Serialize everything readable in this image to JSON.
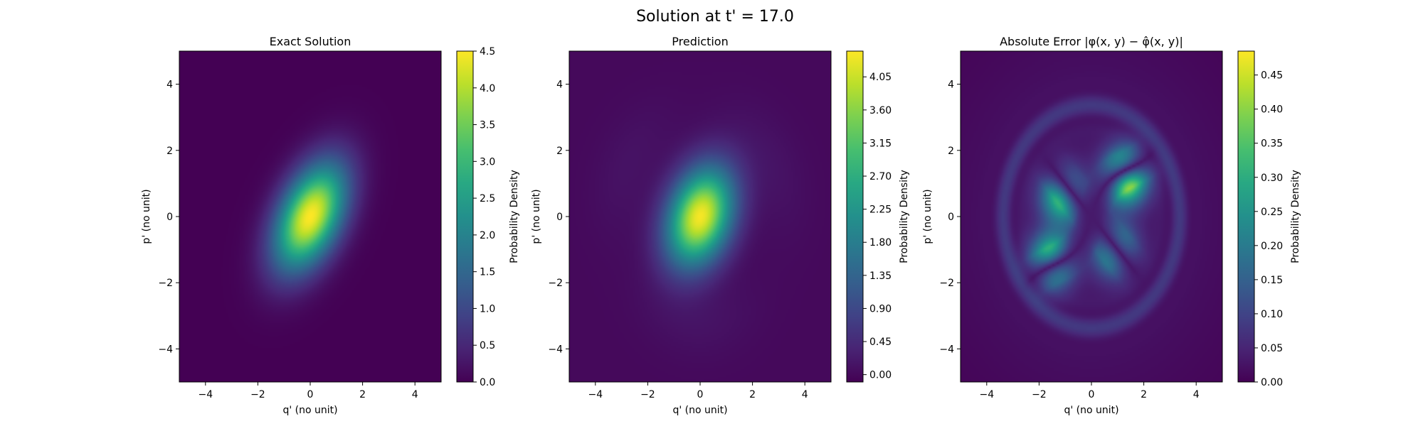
{
  "figure": {
    "suptitle": "Solution at t' = 17.0"
  },
  "chart_data": [
    {
      "type": "heatmap",
      "title": "Exact Solution",
      "xlabel": "q' (no unit)",
      "ylabel": "p' (no unit)",
      "xlim": [
        -5,
        5
      ],
      "ylim": [
        -5,
        5
      ],
      "xticks": [
        -4,
        -2,
        0,
        2,
        4
      ],
      "yticks": [
        -4,
        -2,
        0,
        2,
        4
      ],
      "xtick_labels": [
        "−4",
        "−2",
        "0",
        "2",
        "4"
      ],
      "ytick_labels": [
        "−4",
        "−2",
        "0",
        "2",
        "4"
      ],
      "colormap": "viridis",
      "colorbar": {
        "label": "Probability Density",
        "range": [
          0,
          4.5
        ],
        "ticks": [
          0,
          0.5,
          1.0,
          1.5,
          2.0,
          2.5,
          3.0,
          3.5,
          4.0,
          4.5
        ],
        "tick_labels": [
          "0.0",
          "0.5",
          "1.0",
          "1.5",
          "2.0",
          "2.5",
          "3.0",
          "3.5",
          "4.0",
          "4.5"
        ]
      },
      "field": {
        "kind": "gaussian",
        "peak": 4.5,
        "center": [
          0,
          0
        ],
        "sigma_major": 1.25,
        "sigma_minor": 0.75,
        "major_axis_angle_deg": 55
      }
    },
    {
      "type": "heatmap",
      "title": "Prediction",
      "xlabel": "q' (no unit)",
      "ylabel": "p' (no unit)",
      "xlim": [
        -5,
        5
      ],
      "ylim": [
        -5,
        5
      ],
      "xticks": [
        -4,
        -2,
        0,
        2,
        4
      ],
      "yticks": [
        -4,
        -2,
        0,
        2,
        4
      ],
      "xtick_labels": [
        "−4",
        "−2",
        "0",
        "2",
        "4"
      ],
      "ytick_labels": [
        "−4",
        "−2",
        "0",
        "2",
        "4"
      ],
      "colormap": "viridis",
      "colorbar": {
        "label": "Probability Density",
        "range": [
          -0.1,
          4.4
        ],
        "ticks": [
          0,
          0.45,
          0.9,
          1.35,
          1.8,
          2.25,
          2.7,
          3.15,
          3.6,
          4.05
        ],
        "tick_labels": [
          "0.00",
          "0.45",
          "0.90",
          "1.35",
          "1.80",
          "2.25",
          "2.70",
          "3.15",
          "3.60",
          "4.05"
        ]
      },
      "field": {
        "kind": "gaussian",
        "peak": 4.35,
        "center": [
          0,
          0
        ],
        "sigma_major": 1.1,
        "sigma_minor": 0.8,
        "major_axis_angle_deg": 60,
        "ripple_amplitude": 0.12
      }
    },
    {
      "type": "heatmap",
      "title": "Absolute Error |φ(x, y) − φ̂(x, y)|",
      "xlabel": "q' (no unit)",
      "ylabel": "p' (no unit)",
      "xlim": [
        -5,
        5
      ],
      "ylim": [
        -5,
        5
      ],
      "xticks": [
        -4,
        -2,
        0,
        2,
        4
      ],
      "yticks": [
        -4,
        -2,
        0,
        2,
        4
      ],
      "xtick_labels": [
        "−4",
        "−2",
        "0",
        "2",
        "4"
      ],
      "ytick_labels": [
        "−4",
        "−2",
        "0",
        "2",
        "4"
      ],
      "colormap": "viridis",
      "colorbar": {
        "label": "Probability Density",
        "range": [
          0,
          0.485
        ],
        "ticks": [
          0,
          0.05,
          0.1,
          0.15,
          0.2,
          0.25,
          0.3,
          0.35,
          0.4,
          0.45
        ],
        "tick_labels": [
          "0.00",
          "0.05",
          "0.10",
          "0.15",
          "0.20",
          "0.25",
          "0.30",
          "0.35",
          "0.40",
          "0.45"
        ]
      },
      "field": {
        "kind": "error",
        "peak": 0.485,
        "lobes": [
          {
            "center": [
              1.3,
              1.2
            ],
            "value": 0.48
          },
          {
            "center": [
              -1.1,
              0.6
            ],
            "value": 0.32
          },
          {
            "center": [
              -1.5,
              -1.3
            ],
            "value": 0.36
          },
          {
            "center": [
              0.9,
              -1.0
            ],
            "value": 0.26
          }
        ],
        "ring_radius": 3.3
      }
    }
  ]
}
